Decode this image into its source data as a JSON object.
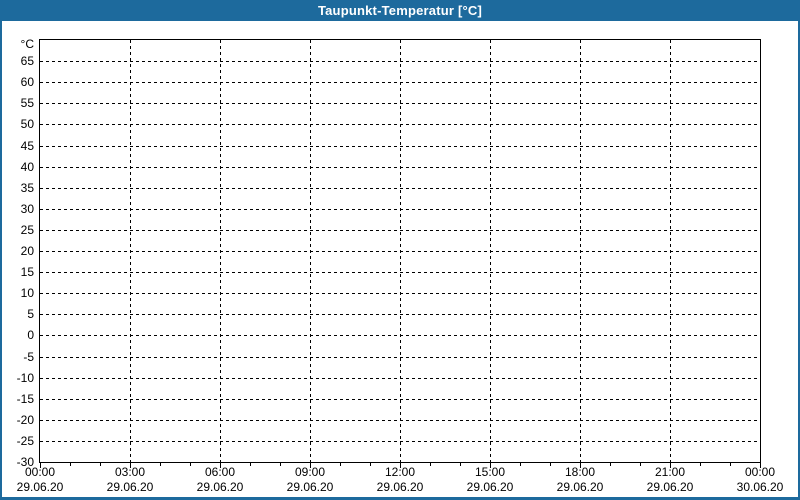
{
  "window": {
    "title": "Taupunkt-Temperatur [°C]"
  },
  "colors": {
    "frame_blue": "#1d6a9d",
    "title_text": "#ffffff",
    "plot_background": "#ffffff",
    "grid_line": "#000000",
    "axis_line": "#000000",
    "label_text": "#000000"
  },
  "chart_data": {
    "type": "line",
    "title": "Taupunkt-Temperatur [°C]",
    "subtitle": "",
    "legend": null,
    "grid": {
      "style": "dashed",
      "horizontal_values": [
        65,
        60,
        55,
        50,
        45,
        40,
        35,
        30,
        25,
        20,
        15,
        10,
        5,
        0,
        -5,
        -10,
        -15,
        -20,
        -25
      ],
      "vertical_hours": [
        3,
        6,
        9,
        12,
        15,
        18,
        21
      ]
    },
    "y_axis": {
      "unit_label": "°C",
      "ylim": [
        -30,
        70
      ],
      "tick_step": 5,
      "tick_labels": [
        "65",
        "60",
        "55",
        "50",
        "45",
        "40",
        "35",
        "30",
        "25",
        "20",
        "15",
        "10",
        "5",
        "0",
        "-5",
        "-10",
        "-15",
        "-20",
        "-25",
        "-30"
      ]
    },
    "x_axis": {
      "total_hours": 24,
      "minor_tick_hours": 1,
      "major_tick_hours": 3,
      "major_ticks": [
        {
          "hour": 0,
          "time": "00:00",
          "date": "29.06.20"
        },
        {
          "hour": 3,
          "time": "03:00",
          "date": "29.06.20"
        },
        {
          "hour": 6,
          "time": "06:00",
          "date": "29.06.20"
        },
        {
          "hour": 9,
          "time": "09:00",
          "date": "29.06.20"
        },
        {
          "hour": 12,
          "time": "12:00",
          "date": "29.06.20"
        },
        {
          "hour": 15,
          "time": "15:00",
          "date": "29.06.20"
        },
        {
          "hour": 18,
          "time": "18:00",
          "date": "29.06.20"
        },
        {
          "hour": 21,
          "time": "21:00",
          "date": "29.06.20"
        },
        {
          "hour": 24,
          "time": "00:00",
          "date": "30.06.20"
        }
      ]
    },
    "series": []
  }
}
